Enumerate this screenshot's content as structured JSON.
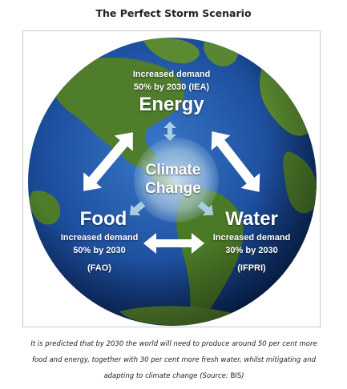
{
  "title": "The Perfect Storm Scenario",
  "diagram": {
    "center": {
      "line1": "Climate",
      "line2": "Change"
    },
    "energy": {
      "label": "Energy",
      "note1": "Increased demand",
      "note2": "50% by 2030 (IEA)"
    },
    "food": {
      "label": "Food",
      "note1": "Increased demand",
      "note2": "50% by 2030",
      "source": "(FAO)"
    },
    "water": {
      "label": "Water",
      "note1": "Increased demand",
      "note2": "30% by 2030",
      "source": "(IFPRI)"
    },
    "colors": {
      "ocean": "#1d4f9e",
      "land": "#4d7a2a",
      "arrow": "#ffffff",
      "center_glow": "#cfe3ef"
    }
  },
  "caption": {
    "text": "It is predicted that by 2030 the world will need to produce around 50 per cent more food and energy, together with 30 per cent more fresh water, whilst mitigating and adapting to climate change (Source:",
    "source": "BIS",
    "end": ")"
  }
}
